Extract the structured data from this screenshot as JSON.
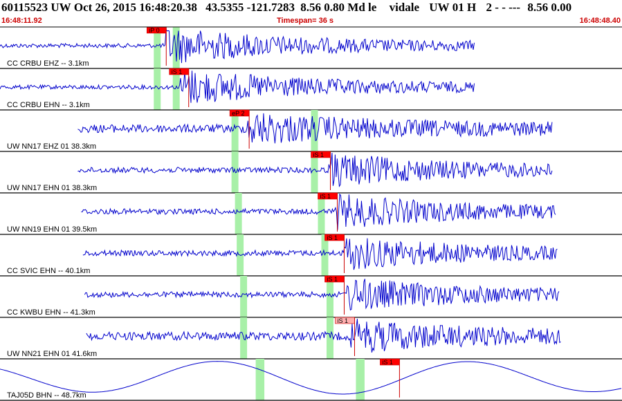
{
  "header": {
    "event_id": "60115523",
    "network": "UW",
    "datetime": "Oct 26, 2015 16:48:20.38",
    "lat": "43.5355",
    "lon": "-121.7283",
    "depth": "8.56",
    "magnitude": "0.80",
    "mag_type": "Md",
    "event_type": "le",
    "analyst": "vidale",
    "net_code": "UW",
    "version": "01",
    "flag": "H",
    "quality": "2",
    "dashes": "- - ---",
    "depth2": "8.56",
    "extra": "0.00"
  },
  "subheader": {
    "start_time": "16:48:11.92",
    "timespan": "Timespan=  36 s",
    "end_time": "16:48:48.40"
  },
  "colors": {
    "trace": "#0000cc",
    "pick_flag": "#ff0000",
    "pick_flag_light": "#ffb0b0",
    "pick_line": "#cc0000",
    "window": "#a8f0a8",
    "separator": "#000000",
    "time_color": "#cc0000"
  },
  "chart_data": {
    "type": "line",
    "x_range_s": [
      0,
      36
    ],
    "traces": [
      {
        "label": "CC CRBU EHZ -- 3.1km",
        "start_s": 0,
        "end_s": 27.5,
        "amplitude": "high",
        "onset_s": 9.6,
        "picks": [
          {
            "text": "iP 0",
            "t": 8.5,
            "light": false
          }
        ],
        "windows_s": [
          8.9,
          9.3,
          10.0,
          10.4
        ]
      },
      {
        "label": "CC CRBU EHN -- 3.1km",
        "start_s": 0,
        "end_s": 27.5,
        "amplitude": "high",
        "onset_s": 10.4,
        "picks": [
          {
            "text": "iS 1",
            "t": 9.8,
            "light": false
          }
        ],
        "windows_s": [
          8.9,
          9.3,
          10.0,
          10.4
        ]
      },
      {
        "label": "UW NN17 EHZ 01 38.3km",
        "start_s": 4.5,
        "end_s": 32.0,
        "amplitude": "medium",
        "onset_s": 14.3,
        "picks": [
          {
            "text": "eP 2",
            "t": 13.3,
            "light": false
          }
        ],
        "windows_s": [
          13.4,
          13.8,
          18.0,
          18.4
        ]
      },
      {
        "label": "UW NN17 EHN 01 38.3km",
        "start_s": 4.5,
        "end_s": 32.0,
        "amplitude": "low",
        "onset_s": 19.0,
        "picks": [
          {
            "text": "iS 1",
            "t": 18.0,
            "light": false
          }
        ],
        "windows_s": [
          13.4,
          13.8,
          18.0,
          18.4
        ]
      },
      {
        "label": "UW NN19 EHN 01 39.5km",
        "start_s": 4.7,
        "end_s": 32.2,
        "amplitude": "low",
        "onset_s": 19.4,
        "picks": [
          {
            "text": "iS 1",
            "t": 18.4,
            "light": false
          }
        ],
        "windows_s": [
          13.6,
          14.0,
          18.4,
          18.8
        ]
      },
      {
        "label": "CC SVIC EHN -- 40.1km",
        "start_s": 4.8,
        "end_s": 32.3,
        "amplitude": "low",
        "onset_s": 19.9,
        "picks": [
          {
            "text": "iS 1",
            "t": 18.8,
            "light": false
          }
        ],
        "windows_s": [
          13.7,
          14.1,
          18.6,
          19.0
        ]
      },
      {
        "label": "CC KWBU EHN -- 41.3km",
        "start_s": 4.9,
        "end_s": 32.4,
        "amplitude": "low",
        "onset_s": 20.0,
        "picks": [
          {
            "text": "iS 1",
            "t": 18.8,
            "light": false
          }
        ],
        "windows_s": [
          13.9,
          14.3,
          18.9,
          19.3
        ]
      },
      {
        "label": "UW NN21 EHN 01 41.6km",
        "start_s": 5.0,
        "end_s": 32.5,
        "amplitude": "medium",
        "onset_s": 20.3,
        "picks": [
          {
            "text": "iS 1",
            "t": 19.4,
            "light": true
          }
        ],
        "windows_s": [
          13.9,
          14.3,
          18.9,
          19.3
        ]
      },
      {
        "label": "TAJ05D BHN -- 48.7km",
        "start_s": 0,
        "end_s": 36,
        "amplitude": "long-period",
        "onset_s": 21.9,
        "picks": [
          {
            "text": "iS 1",
            "t": 22.0,
            "light": false
          }
        ],
        "windows_s": [
          14.8,
          15.3,
          20.6,
          21.1
        ]
      }
    ]
  }
}
